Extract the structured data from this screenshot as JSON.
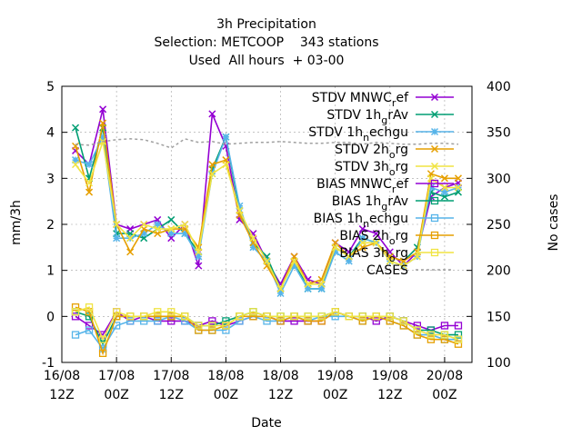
{
  "chart_data": {
    "type": "line",
    "title_lines": [
      "3h Precipitation",
      "Selection: METCOOP    343 stations",
      "Used  All hours  + 03-00"
    ],
    "xlabel": "Date",
    "ylabel": "mm/3h",
    "y2label": "No cases",
    "ylim": [
      -1,
      5
    ],
    "y2lim": [
      100,
      400
    ],
    "yticks": [
      "-1",
      "0",
      "1",
      "2",
      "3",
      "4",
      "5"
    ],
    "y2ticks": [
      "100",
      "150",
      "200",
      "250",
      "300",
      "350",
      "400"
    ],
    "xlim": [
      0,
      90
    ],
    "xticks": [
      {
        "x": 0,
        "top": "16/08",
        "bottom": "12Z"
      },
      {
        "x": 12,
        "top": "17/08",
        "bottom": "00Z"
      },
      {
        "x": 24,
        "top": "17/08",
        "bottom": "12Z"
      },
      {
        "x": 36,
        "top": "18/08",
        "bottom": "00Z"
      },
      {
        "x": 48,
        "top": "18/08",
        "bottom": "12Z"
      },
      {
        "x": 60,
        "top": "19/08",
        "bottom": "00Z"
      },
      {
        "x": 72,
        "top": "19/08",
        "bottom": "12Z"
      },
      {
        "x": 84,
        "top": "20/08",
        "bottom": "00Z"
      }
    ],
    "grid": true,
    "legend_position": "top-right",
    "x": [
      3,
      6,
      9,
      12,
      15,
      18,
      21,
      24,
      27,
      30,
      33,
      36,
      39,
      42,
      45,
      48,
      51,
      54,
      57,
      60,
      63,
      66,
      69,
      72,
      75,
      78,
      81,
      84,
      87
    ],
    "series": [
      {
        "label": "STDV MNWC",
        "sub": "r",
        "tail": "ef",
        "color": "#9400d3",
        "marker": "x",
        "values": [
          3.6,
          3.3,
          4.5,
          2.0,
          1.9,
          2.0,
          2.1,
          1.7,
          2.0,
          1.1,
          4.4,
          3.7,
          2.1,
          1.8,
          1.2,
          0.7,
          1.3,
          0.8,
          0.7,
          1.6,
          1.4,
          1.9,
          1.8,
          1.4,
          1.1,
          1.4,
          2.6,
          2.8,
          2.9
        ]
      },
      {
        "label": "STDV 1h",
        "sub": "g",
        "tail": "rAv",
        "color": "#009e73",
        "marker": "x",
        "values": [
          4.1,
          3.0,
          4.1,
          1.8,
          1.8,
          1.7,
          1.9,
          2.1,
          1.8,
          1.4,
          3.2,
          3.9,
          2.3,
          1.6,
          1.3,
          0.6,
          1.2,
          0.6,
          0.6,
          1.5,
          1.3,
          1.7,
          1.6,
          1.3,
          1.2,
          1.5,
          2.7,
          2.6,
          2.7
        ]
      },
      {
        "label": "STDV 1h",
        "sub": "n",
        "tail": "echgu",
        "color": "#56b4e9",
        "marker": "*",
        "values": [
          3.4,
          3.3,
          3.9,
          1.7,
          1.7,
          1.8,
          2.0,
          1.8,
          1.8,
          1.3,
          3.1,
          3.9,
          2.4,
          1.5,
          1.2,
          0.5,
          1.1,
          0.6,
          0.6,
          1.4,
          1.2,
          1.7,
          1.6,
          1.2,
          1.1,
          1.3,
          2.8,
          2.7,
          2.8
        ]
      },
      {
        "label": "STDV 2h",
        "sub": "o",
        "tail": "rg",
        "color": "#e69f00",
        "marker": "x",
        "values": [
          3.7,
          2.7,
          4.2,
          2.0,
          1.4,
          1.9,
          1.8,
          1.9,
          1.9,
          1.5,
          3.3,
          3.4,
          2.2,
          1.6,
          1.1,
          0.6,
          1.3,
          0.7,
          0.8,
          1.6,
          1.3,
          1.5,
          1.6,
          1.3,
          1.2,
          1.4,
          3.1,
          3.0,
          3.0
        ]
      },
      {
        "label": "STDV 3h",
        "sub": "o",
        "tail": "rg",
        "color": "#f0e442",
        "marker": "x",
        "values": [
          3.3,
          2.9,
          3.8,
          2.0,
          1.7,
          2.0,
          1.9,
          1.9,
          2.0,
          1.4,
          3.1,
          3.3,
          2.3,
          1.7,
          1.2,
          0.6,
          1.2,
          0.7,
          0.7,
          1.5,
          1.3,
          1.6,
          1.6,
          1.2,
          1.1,
          1.3,
          3.0,
          2.8,
          2.8
        ]
      },
      {
        "label": "BIAS MNWC",
        "sub": "r",
        "tail": "ef",
        "color": "#9400d3",
        "marker": "square",
        "values": [
          0.0,
          -0.2,
          -0.4,
          0.1,
          -0.1,
          0.0,
          -0.1,
          -0.1,
          -0.1,
          -0.2,
          -0.1,
          -0.2,
          -0.1,
          0.0,
          0.0,
          -0.1,
          -0.1,
          -0.1,
          -0.1,
          0.1,
          0.0,
          0.0,
          -0.1,
          0.0,
          -0.1,
          -0.2,
          -0.3,
          -0.2,
          -0.2
        ]
      },
      {
        "label": "BIAS 1h",
        "sub": "g",
        "tail": "rAv",
        "color": "#009e73",
        "marker": "square",
        "values": [
          0.1,
          0.0,
          -0.6,
          0.0,
          0.0,
          0.0,
          0.0,
          0.0,
          0.0,
          -0.2,
          -0.2,
          -0.1,
          0.0,
          0.1,
          0.0,
          0.0,
          0.0,
          0.0,
          0.0,
          0.1,
          0.0,
          0.0,
          0.0,
          0.0,
          -0.1,
          -0.3,
          -0.3,
          -0.4,
          -0.4
        ]
      },
      {
        "label": "BIAS 1h",
        "sub": "n",
        "tail": "echgu",
        "color": "#56b4e9",
        "marker": "square",
        "values": [
          -0.4,
          -0.3,
          -0.7,
          -0.2,
          -0.1,
          -0.1,
          -0.1,
          0.0,
          -0.1,
          -0.3,
          -0.3,
          -0.3,
          -0.1,
          0.0,
          -0.1,
          -0.1,
          0.0,
          -0.1,
          0.0,
          0.0,
          0.0,
          -0.1,
          0.0,
          -0.1,
          -0.2,
          -0.4,
          -0.4,
          -0.5,
          -0.5
        ]
      },
      {
        "label": "BIAS 2h",
        "sub": "o",
        "tail": "rg",
        "color": "#e69f00",
        "marker": "square",
        "values": [
          0.2,
          0.1,
          -0.8,
          0.0,
          0.0,
          0.0,
          0.0,
          0.0,
          0.0,
          -0.3,
          -0.3,
          -0.2,
          0.0,
          0.0,
          0.0,
          -0.1,
          0.0,
          -0.1,
          -0.1,
          0.1,
          0.0,
          -0.1,
          0.0,
          -0.1,
          -0.2,
          -0.4,
          -0.5,
          -0.5,
          -0.6
        ]
      },
      {
        "label": "BIAS 3h",
        "sub": "o",
        "tail": "rg",
        "color": "#f0e442",
        "marker": "square",
        "values": [
          0.1,
          0.2,
          -0.5,
          0.1,
          0.0,
          0.0,
          0.1,
          0.1,
          0.0,
          -0.2,
          -0.2,
          -0.2,
          0.0,
          0.1,
          0.0,
          0.0,
          0.0,
          0.0,
          0.0,
          0.1,
          0.0,
          0.0,
          0.0,
          0.0,
          -0.1,
          -0.3,
          -0.4,
          -0.4,
          -0.5
        ]
      },
      {
        "label": "CASES",
        "sub": "",
        "tail": "",
        "color": "#a0a0a0",
        "marker": "none",
        "axis": "y2",
        "dashed": true,
        "values": [
          337,
          336,
          340,
          342,
          343,
          342,
          338,
          333,
          343,
          339,
          340,
          337,
          338,
          339,
          339,
          340,
          339,
          338,
          338,
          339,
          339,
          337,
          339,
          338,
          337,
          337,
          338,
          338,
          337
        ]
      }
    ]
  }
}
